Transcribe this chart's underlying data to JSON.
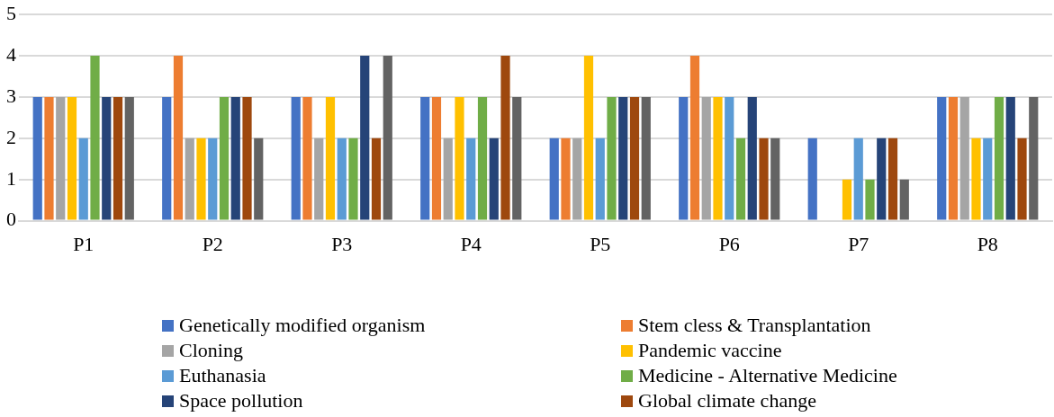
{
  "chart_data": {
    "type": "bar",
    "categories": [
      "P1",
      "P2",
      "P3",
      "P4",
      "P5",
      "P6",
      "P7",
      "P8"
    ],
    "series": [
      {
        "name": "Genetically modified organism",
        "color": "#4472c4",
        "values": [
          3,
          3,
          3,
          3,
          2,
          3,
          2,
          3
        ]
      },
      {
        "name": "Stem cless & Transplantation",
        "color": "#ed7d31",
        "values": [
          3,
          4,
          3,
          3,
          2,
          4,
          0,
          3
        ]
      },
      {
        "name": "Cloning",
        "color": "#a5a5a5",
        "values": [
          3,
          2,
          2,
          2,
          2,
          3,
          0,
          3
        ]
      },
      {
        "name": "Pandemic vaccine",
        "color": "#ffc000",
        "values": [
          3,
          2,
          3,
          3,
          4,
          3,
          1,
          2
        ]
      },
      {
        "name": "Euthanasia",
        "color": "#5b9bd5",
        "values": [
          2,
          2,
          2,
          2,
          2,
          3,
          2,
          2
        ]
      },
      {
        "name": "Medicine - Alternative Medicine",
        "color": "#70ad47",
        "values": [
          4,
          3,
          2,
          3,
          3,
          2,
          1,
          3
        ]
      },
      {
        "name": "Space pollution",
        "color": "#264478",
        "values": [
          3,
          3,
          4,
          2,
          3,
          3,
          2,
          3
        ]
      },
      {
        "name": "Global climate change",
        "color": "#9e480e",
        "values": [
          3,
          3,
          2,
          4,
          3,
          2,
          2,
          2
        ]
      },
      {
        "color": "#636363",
        "values": [
          3,
          2,
          4,
          3,
          3,
          2,
          1,
          3
        ]
      }
    ],
    "ylim": [
      0,
      5
    ],
    "yticks": [
      0,
      1,
      2,
      3,
      4,
      5
    ],
    "grid": "y",
    "legend": "bottom"
  }
}
